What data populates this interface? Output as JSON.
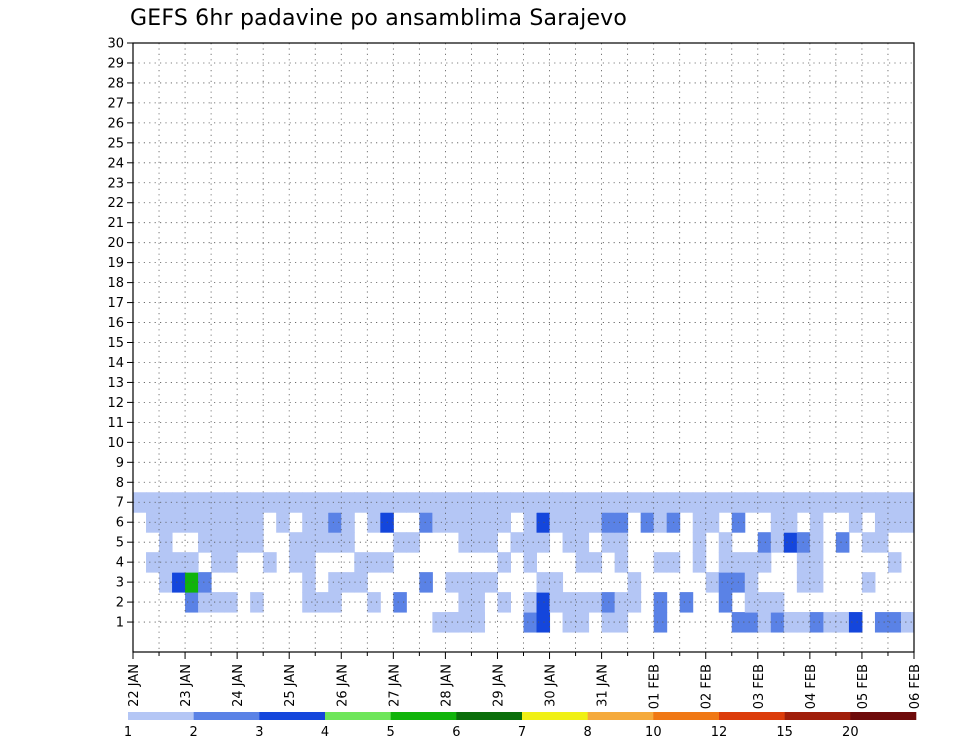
{
  "chart_data": {
    "type": "heatmap",
    "title": "GEFS 6hr padavine po ansamblima Sarajevo",
    "xlabel": "",
    "ylabel": "",
    "x_tick_labels": [
      "22 JAN",
      "23 JAN",
      "24 JAN",
      "25 JAN",
      "26 JAN",
      "27 JAN",
      "28 JAN",
      "29 JAN",
      "30 JAN",
      "31 JAN",
      "01 FEB",
      "02 FEB",
      "03 FEB",
      "04 FEB",
      "05 FEB",
      "06 FEB"
    ],
    "y_tick_labels": [
      "1",
      "2",
      "3",
      "4",
      "5",
      "6",
      "7",
      "8",
      "9",
      "10",
      "11",
      "12",
      "13",
      "14",
      "15",
      "16",
      "17",
      "18",
      "19",
      "20",
      "21",
      "22",
      "23",
      "24",
      "25",
      "26",
      "27",
      "28",
      "29",
      "30"
    ],
    "members": 30,
    "steps_per_day": 4,
    "grid": true,
    "legend": {
      "placement": "bottom",
      "labels": [
        "1",
        "2",
        "3",
        "4",
        "5",
        "6",
        "7",
        "8",
        "10",
        "12",
        "15",
        "20"
      ],
      "colors": [
        "#b4c6f5",
        "#5a82e6",
        "#1446dc",
        "#6ee65a",
        "#10b40a",
        "#0a6e0a",
        "#f0f014",
        "#f5aa3c",
        "#f07814",
        "#dc3c0a",
        "#a01e0a",
        "#6e0a0a"
      ]
    },
    "cells": [
      [
        24,
        1,
        1
      ],
      [
        26,
        1,
        1
      ],
      [
        30,
        1,
        1
      ],
      [
        50,
        1,
        1
      ],
      [
        51,
        1,
        1
      ],
      [
        53,
        1,
        1
      ],
      [
        54,
        1,
        1
      ],
      [
        59,
        1,
        1
      ],
      [
        60,
        1,
        1
      ],
      [
        62,
        1,
        2
      ],
      [
        23,
        1,
        1
      ],
      [
        24,
        1,
        1
      ],
      [
        25,
        1,
        1
      ],
      [
        26,
        1,
        1
      ],
      [
        30,
        1,
        2
      ],
      [
        31,
        1,
        3
      ],
      [
        33,
        1,
        1
      ],
      [
        34,
        1,
        1
      ],
      [
        36,
        1,
        1
      ],
      [
        37,
        1,
        1
      ],
      [
        40,
        1,
        2
      ],
      [
        46,
        1,
        2
      ],
      [
        47,
        1,
        2
      ],
      [
        48,
        1,
        1
      ],
      [
        49,
        1,
        2
      ],
      [
        50,
        1,
        1
      ],
      [
        51,
        1,
        1
      ],
      [
        52,
        1,
        2
      ],
      [
        54,
        1,
        1
      ],
      [
        55,
        1,
        3
      ],
      [
        57,
        1,
        2
      ],
      [
        58,
        1,
        2
      ],
      [
        59,
        1,
        1
      ],
      [
        60,
        1,
        1
      ],
      [
        61,
        1,
        1
      ],
      [
        4,
        2,
        2
      ],
      [
        5,
        2,
        1
      ],
      [
        6,
        2,
        1
      ],
      [
        7,
        2,
        1
      ],
      [
        9,
        2,
        1
      ],
      [
        13,
        2,
        1
      ],
      [
        14,
        2,
        1
      ],
      [
        15,
        2,
        1
      ],
      [
        18,
        2,
        1
      ],
      [
        20,
        2,
        2
      ],
      [
        25,
        2,
        1
      ],
      [
        26,
        2,
        1
      ],
      [
        28,
        2,
        1
      ],
      [
        30,
        2,
        1
      ],
      [
        31,
        2,
        3
      ],
      [
        32,
        2,
        1
      ],
      [
        33,
        2,
        1
      ],
      [
        34,
        2,
        1
      ],
      [
        35,
        2,
        1
      ],
      [
        36,
        2,
        2
      ],
      [
        37,
        2,
        1
      ],
      [
        38,
        2,
        1
      ],
      [
        40,
        2,
        2
      ],
      [
        42,
        2,
        2
      ],
      [
        45,
        2,
        2
      ],
      [
        47,
        2,
        1
      ],
      [
        48,
        2,
        1
      ],
      [
        49,
        2,
        1
      ],
      [
        2,
        3,
        1
      ],
      [
        3,
        3,
        3
      ],
      [
        4,
        3,
        5
      ],
      [
        5,
        3,
        2
      ],
      [
        13,
        3,
        1
      ],
      [
        15,
        3,
        1
      ],
      [
        16,
        3,
        1
      ],
      [
        17,
        3,
        1
      ],
      [
        22,
        3,
        2
      ],
      [
        24,
        3,
        1
      ],
      [
        25,
        3,
        1
      ],
      [
        26,
        3,
        1
      ],
      [
        27,
        3,
        1
      ],
      [
        31,
        3,
        1
      ],
      [
        32,
        3,
        1
      ],
      [
        38,
        3,
        1
      ],
      [
        44,
        3,
        1
      ],
      [
        45,
        3,
        2
      ],
      [
        46,
        3,
        2
      ],
      [
        47,
        3,
        1
      ],
      [
        51,
        3,
        1
      ],
      [
        52,
        3,
        1
      ],
      [
        56,
        3,
        1
      ],
      [
        1,
        4,
        1
      ],
      [
        2,
        4,
        1
      ],
      [
        3,
        4,
        1
      ],
      [
        4,
        4,
        1
      ],
      [
        6,
        4,
        1
      ],
      [
        7,
        4,
        1
      ],
      [
        10,
        4,
        1
      ],
      [
        12,
        4,
        1
      ],
      [
        13,
        4,
        1
      ],
      [
        17,
        4,
        1
      ],
      [
        18,
        4,
        1
      ],
      [
        19,
        4,
        1
      ],
      [
        28,
        4,
        1
      ],
      [
        30,
        4,
        1
      ],
      [
        34,
        4,
        1
      ],
      [
        35,
        4,
        1
      ],
      [
        37,
        4,
        1
      ],
      [
        40,
        4,
        1
      ],
      [
        41,
        4,
        1
      ],
      [
        43,
        4,
        1
      ],
      [
        45,
        4,
        1
      ],
      [
        46,
        4,
        1
      ],
      [
        47,
        4,
        1
      ],
      [
        48,
        4,
        1
      ],
      [
        51,
        4,
        1
      ],
      [
        52,
        4,
        1
      ],
      [
        58,
        4,
        1
      ],
      [
        2,
        5,
        1
      ],
      [
        5,
        5,
        1
      ],
      [
        6,
        5,
        1
      ],
      [
        7,
        5,
        1
      ],
      [
        8,
        5,
        1
      ],
      [
        9,
        5,
        1
      ],
      [
        12,
        5,
        1
      ],
      [
        13,
        5,
        1
      ],
      [
        14,
        5,
        1
      ],
      [
        15,
        5,
        1
      ],
      [
        16,
        5,
        1
      ],
      [
        20,
        5,
        1
      ],
      [
        21,
        5,
        1
      ],
      [
        25,
        5,
        1
      ],
      [
        26,
        5,
        1
      ],
      [
        27,
        5,
        1
      ],
      [
        29,
        5,
        1
      ],
      [
        30,
        5,
        1
      ],
      [
        31,
        5,
        1
      ],
      [
        33,
        5,
        1
      ],
      [
        34,
        5,
        1
      ],
      [
        36,
        5,
        1
      ],
      [
        37,
        5,
        1
      ],
      [
        43,
        5,
        1
      ],
      [
        45,
        5,
        1
      ],
      [
        48,
        5,
        2
      ],
      [
        49,
        5,
        1
      ],
      [
        50,
        5,
        3
      ],
      [
        51,
        5,
        2
      ],
      [
        52,
        5,
        1
      ],
      [
        54,
        5,
        2
      ],
      [
        56,
        5,
        1
      ],
      [
        57,
        5,
        1
      ],
      [
        1,
        6,
        1
      ],
      [
        2,
        6,
        1
      ],
      [
        3,
        6,
        1
      ],
      [
        4,
        6,
        1
      ],
      [
        5,
        6,
        1
      ],
      [
        6,
        6,
        1
      ],
      [
        7,
        6,
        1
      ],
      [
        8,
        6,
        1
      ],
      [
        9,
        6,
        1
      ],
      [
        11,
        6,
        1
      ],
      [
        13,
        6,
        1
      ],
      [
        14,
        6,
        1
      ],
      [
        15,
        6,
        2
      ],
      [
        16,
        6,
        1
      ],
      [
        18,
        6,
        1
      ],
      [
        19,
        6,
        3
      ],
      [
        22,
        6,
        2
      ],
      [
        23,
        6,
        1
      ],
      [
        24,
        6,
        1
      ],
      [
        25,
        6,
        1
      ],
      [
        26,
        6,
        1
      ],
      [
        27,
        6,
        1
      ],
      [
        28,
        6,
        1
      ],
      [
        30,
        6,
        1
      ],
      [
        31,
        6,
        3
      ],
      [
        32,
        6,
        1
      ],
      [
        33,
        6,
        1
      ],
      [
        34,
        6,
        1
      ],
      [
        35,
        6,
        1
      ],
      [
        36,
        6,
        2
      ],
      [
        37,
        6,
        2
      ],
      [
        39,
        6,
        2
      ],
      [
        40,
        6,
        1
      ],
      [
        41,
        6,
        2
      ],
      [
        43,
        6,
        1
      ],
      [
        44,
        6,
        1
      ],
      [
        46,
        6,
        2
      ],
      [
        49,
        6,
        1
      ],
      [
        50,
        6,
        1
      ],
      [
        52,
        6,
        1
      ],
      [
        55,
        6,
        1
      ],
      [
        57,
        6,
        1
      ],
      [
        58,
        6,
        1
      ],
      [
        59,
        6,
        1
      ],
      [
        0,
        7,
        1
      ],
      [
        1,
        7,
        1
      ],
      [
        2,
        7,
        1
      ],
      [
        3,
        7,
        1
      ],
      [
        4,
        7,
        1
      ],
      [
        5,
        7,
        1
      ],
      [
        6,
        7,
        1
      ],
      [
        7,
        7,
        1
      ],
      [
        8,
        7,
        1
      ],
      [
        9,
        7,
        1
      ],
      [
        10,
        7,
        1
      ],
      [
        11,
        7,
        1
      ],
      [
        12,
        7,
        1
      ],
      [
        13,
        7,
        1
      ],
      [
        14,
        7,
        1
      ],
      [
        15,
        7,
        1
      ],
      [
        16,
        7,
        1
      ],
      [
        17,
        7,
        1
      ],
      [
        18,
        7,
        1
      ],
      [
        19,
        7,
        1
      ],
      [
        20,
        7,
        1
      ],
      [
        21,
        7,
        1
      ],
      [
        22,
        7,
        1
      ],
      [
        23,
        7,
        1
      ],
      [
        24,
        7,
        1
      ],
      [
        25,
        7,
        1
      ],
      [
        26,
        7,
        1
      ],
      [
        27,
        7,
        1
      ],
      [
        28,
        7,
        1
      ],
      [
        29,
        7,
        1
      ],
      [
        30,
        7,
        1
      ],
      [
        31,
        7,
        1
      ],
      [
        32,
        7,
        1
      ],
      [
        33,
        7,
        1
      ],
      [
        34,
        7,
        1
      ],
      [
        35,
        7,
        1
      ],
      [
        36,
        7,
        1
      ],
      [
        37,
        7,
        1
      ],
      [
        38,
        7,
        1
      ],
      [
        39,
        7,
        1
      ],
      [
        40,
        7,
        1
      ],
      [
        41,
        7,
        1
      ],
      [
        42,
        7,
        1
      ],
      [
        43,
        7,
        1
      ],
      [
        44,
        7,
        1
      ],
      [
        45,
        7,
        1
      ],
      [
        46,
        7,
        1
      ],
      [
        47,
        7,
        1
      ],
      [
        48,
        7,
        1
      ],
      [
        49,
        7,
        1
      ],
      [
        50,
        7,
        1
      ],
      [
        51,
        7,
        1
      ],
      [
        52,
        7,
        1
      ],
      [
        53,
        7,
        1
      ],
      [
        54,
        7,
        1
      ],
      [
        55,
        7,
        1
      ],
      [
        56,
        7,
        1
      ],
      [
        57,
        7,
        1
      ],
      [
        58,
        7,
        1
      ],
      [
        59,
        7,
        1
      ]
    ]
  }
}
